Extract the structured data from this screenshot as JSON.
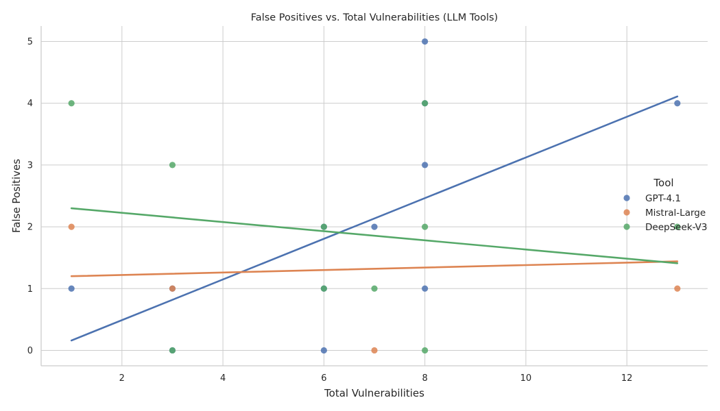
{
  "chart_data": {
    "type": "scatter",
    "title": "False Positives vs. Total Vulnerabilities (LLM Tools)",
    "xlabel": "Total Vulnerabilities",
    "ylabel": "False Positives",
    "xlim": [
      0.4,
      13.6
    ],
    "ylim": [
      -0.25,
      5.25
    ],
    "xticks": [
      2,
      4,
      6,
      8,
      10,
      12
    ],
    "yticks": [
      0,
      1,
      2,
      3,
      4,
      5
    ],
    "grid": true,
    "legend": {
      "title": "Tool",
      "position": "right"
    },
    "series": [
      {
        "name": "GPT-4.1",
        "color": "#4c72b0",
        "points": [
          [
            1,
            1
          ],
          [
            3,
            1
          ],
          [
            3,
            0
          ],
          [
            6,
            2
          ],
          [
            6,
            0
          ],
          [
            6,
            1
          ],
          [
            7,
            2
          ],
          [
            8,
            5
          ],
          [
            8,
            3
          ],
          [
            8,
            1
          ],
          [
            8,
            4
          ],
          [
            13,
            4
          ]
        ],
        "fit": [
          [
            1,
            0.16
          ],
          [
            13,
            4.11
          ]
        ]
      },
      {
        "name": "Mistral-Large",
        "color": "#dd8452",
        "points": [
          [
            1,
            2
          ],
          [
            3,
            1
          ],
          [
            7,
            0
          ],
          [
            13,
            1
          ]
        ],
        "fit": [
          [
            1,
            1.2
          ],
          [
            13,
            1.44
          ]
        ]
      },
      {
        "name": "DeepSeek-V3",
        "color": "#55a868",
        "points": [
          [
            1,
            4
          ],
          [
            3,
            3
          ],
          [
            3,
            0
          ],
          [
            6,
            2
          ],
          [
            6,
            1
          ],
          [
            7,
            1
          ],
          [
            8,
            4
          ],
          [
            8,
            2
          ],
          [
            8,
            0
          ],
          [
            13,
            2
          ]
        ],
        "fit": [
          [
            1,
            2.3
          ],
          [
            13,
            1.41
          ]
        ]
      }
    ]
  }
}
